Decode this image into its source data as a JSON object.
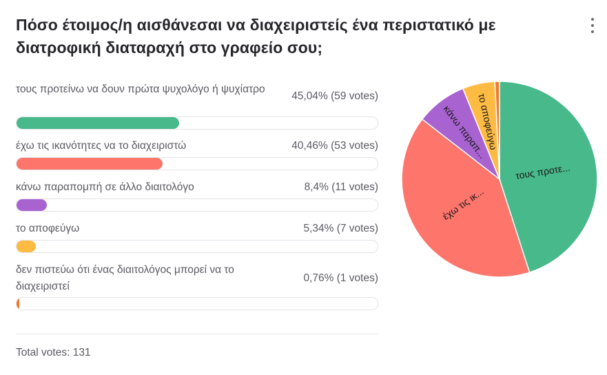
{
  "question": "Πόσο έτοιμος/η αισθάνεσαι να διαχειριστείς ένα περιστατικό με διατροφική διαταραχή στο γραφείο σου;",
  "total_votes_label": "Total votes: 131",
  "chart_data": {
    "type": "pie",
    "title": "Πόσο έτοιμος/η αισθάνεσαι να διαχειριστείς ένα περιστατικό με διατροφική διαταραχή στο γραφείο σου;",
    "categories": [
      "τους προτείνω να δουν πρώτα ψυχολόγο ή ψυχίατρο",
      "έχω τις ικανότητες να το διαχειριστώ",
      "κάνω παραπομπή σε άλλο διαιτολόγο",
      "το αποφεύγω",
      "δεν πιστεύω ότι ένας διαιτολόγος μπορεί να το διαχειριστεί"
    ],
    "values": [
      45.04,
      40.46,
      8.4,
      5.34,
      0.76
    ],
    "votes": [
      59,
      53,
      11,
      7,
      1
    ],
    "value_labels": [
      "45,04% (59 votes)",
      "40,46% (53 votes)",
      "8,4% (11 votes)",
      "5,34% (7 votes)",
      "0,76% (1 votes)"
    ],
    "slice_labels": [
      "τους προτε...",
      "έχω τις ικ...",
      "κάνω παραπ...",
      "το αποφεύγω",
      ""
    ],
    "colors": [
      "#47b98a",
      "#fd756b",
      "#a863d1",
      "#fdbb43",
      "#f07b2e"
    ],
    "total": 131
  }
}
